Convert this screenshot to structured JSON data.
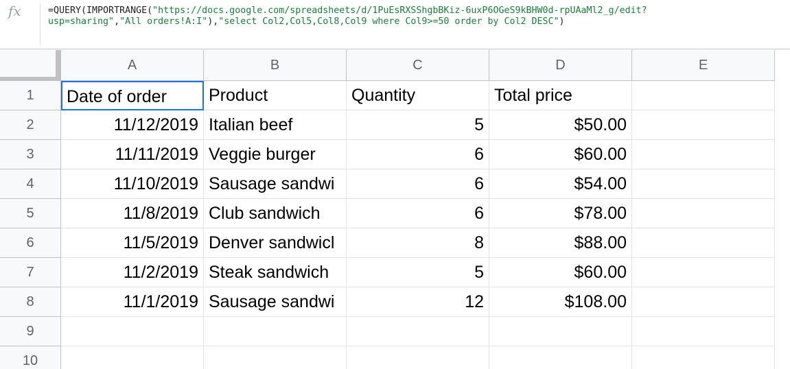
{
  "formula_bar": {
    "fx_label": "fx",
    "line1_prefix": "=QUERY(IMPORTRANGE(",
    "line1_url": "\"https://docs.google.com/spreadsheets/d/1PuEsRXSShgbBKiz-6uxP6OGeS9kBHW0d-rpUAaMl2_g/edit?",
    "line2_url": "usp=sharing\"",
    "line2_sep1": ",",
    "line2_range": "\"All orders!A:I\"",
    "line2_sep2": "),",
    "line2_query": "\"select Col2,Col5,Col8,Col9 where Col9>=50 order by Col2 DESC\"",
    "line2_close": ")"
  },
  "columns": [
    "A",
    "B",
    "C",
    "D",
    "E"
  ],
  "rows": [
    "1",
    "2",
    "3",
    "4",
    "5",
    "6",
    "7",
    "8",
    "9",
    "10"
  ],
  "header_row": [
    "Date of order",
    "Product",
    "Quantity",
    "Total price",
    ""
  ],
  "data_rows": [
    [
      "11/12/2019",
      "Italian beef",
      "5",
      "$50.00"
    ],
    [
      "11/11/2019",
      "Veggie burger",
      "6",
      "$60.00"
    ],
    [
      "11/10/2019",
      "Sausage sandwi",
      "6",
      "$54.00"
    ],
    [
      "11/8/2019",
      "Club sandwich",
      "6",
      "$78.00"
    ],
    [
      "11/5/2019",
      "Denver sandwicl",
      "8",
      "$88.00"
    ],
    [
      "11/2/2019",
      "Steak sandwich",
      "5",
      "$60.00"
    ],
    [
      "11/1/2019",
      "Sausage sandwi",
      "12",
      "$108.00"
    ]
  ],
  "colors": {
    "selection": "#1a73e8",
    "formula_string": "#188038",
    "header_bg": "#f8f9fa"
  }
}
